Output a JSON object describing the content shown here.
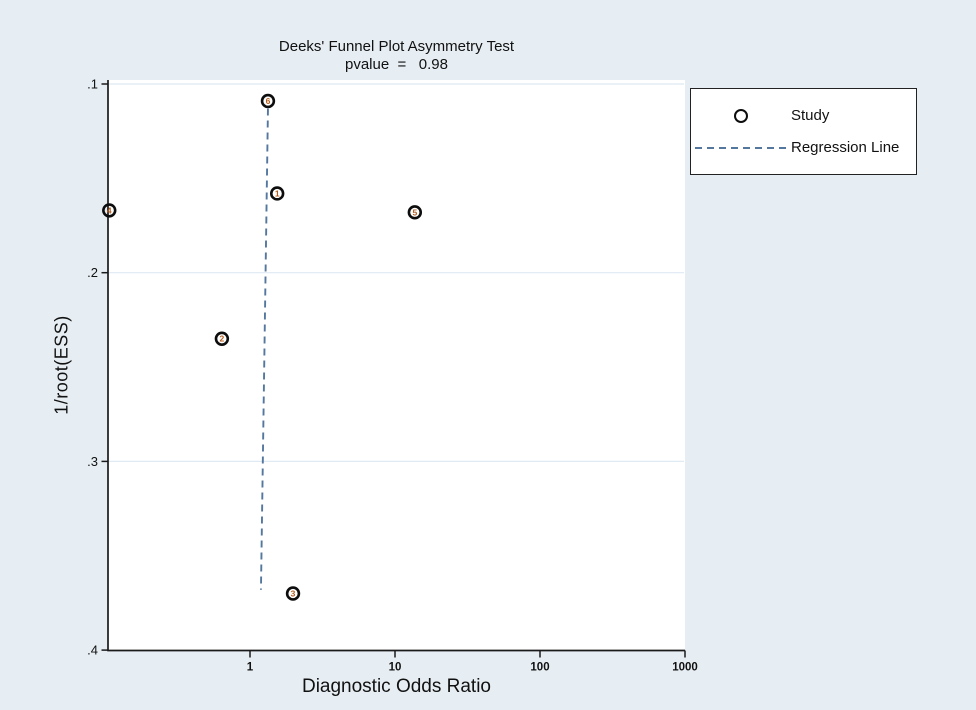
{
  "title": {
    "line1": "Deeks' Funnel Plot Asymmetry Test",
    "line2": "pvalue  =   0.98"
  },
  "axes": {
    "y_label": "1/root(ESS)",
    "x_label": "Diagnostic Odds Ratio"
  },
  "legend": {
    "study_label": "Study",
    "regression_label": "Regression Line"
  },
  "colors": {
    "background": "#e7eef3",
    "plot_background": "#ffffff",
    "axis": "#1a1a1a",
    "gridline": "#dfeaf2",
    "regression_line": "#54779e",
    "marker_ring": "#0d0d0d",
    "marker_number": "#b45c1c"
  },
  "chart_data": {
    "type": "scatter",
    "title": "Deeks' Funnel Plot Asymmetry Test",
    "subtitle": "pvalue = 0.98",
    "pvalue": 0.98,
    "xlabel": "Diagnostic Odds Ratio",
    "ylabel": "1/root(ESS)",
    "x_scale": "log10",
    "xlim": [
      0.105,
      1000
    ],
    "ylim": [
      0.1,
      0.4
    ],
    "y_axis_reversed": true,
    "grid": true,
    "legend_position": "top-right-outside",
    "legend_entries": [
      "Study",
      "Regression Line"
    ],
    "x_ticks": [
      {
        "value": 1,
        "label": "1"
      },
      {
        "value": 10,
        "label": "10"
      },
      {
        "value": 100,
        "label": "100"
      },
      {
        "value": 1000,
        "label": "1000"
      }
    ],
    "y_ticks": [
      {
        "value": 0.1,
        "label": ".1"
      },
      {
        "value": 0.2,
        "label": ".2"
      },
      {
        "value": 0.3,
        "label": ".3"
      },
      {
        "value": 0.4,
        "label": ".4"
      }
    ],
    "studies": [
      {
        "id": "6",
        "dor": 1.33,
        "inv_root_ess": 0.109
      },
      {
        "id": "1",
        "dor": 1.54,
        "inv_root_ess": 0.158
      },
      {
        "id": "5",
        "dor": 13.7,
        "inv_root_ess": 0.168
      },
      {
        "id": "4",
        "dor": 0.107,
        "inv_root_ess": 0.167
      },
      {
        "id": "2",
        "dor": 0.64,
        "inv_root_ess": 0.235
      },
      {
        "id": "3",
        "dor": 1.98,
        "inv_root_ess": 0.37
      }
    ],
    "regression_line": [
      {
        "dor": 1.33,
        "inv_root_ess": 0.113
      },
      {
        "dor": 1.19,
        "inv_root_ess": 0.368
      }
    ]
  }
}
